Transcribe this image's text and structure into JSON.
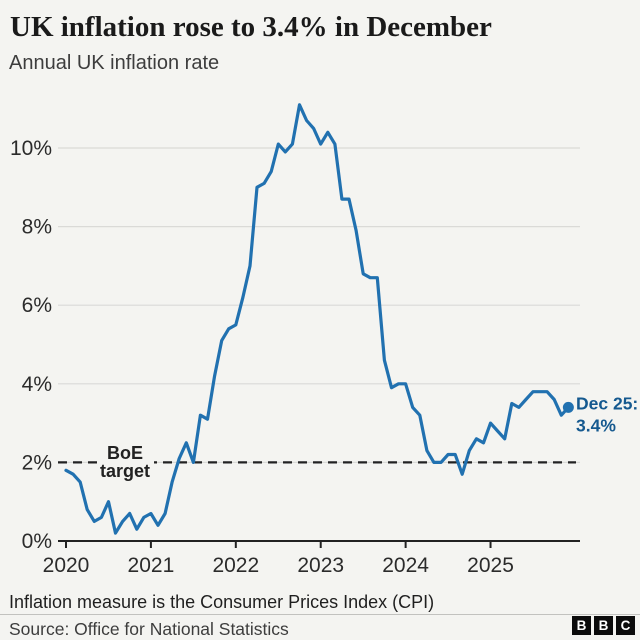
{
  "header": {
    "title": "UK inflation rose to 3.4% in December",
    "subtitle": "Annual UK inflation rate"
  },
  "chart_data": {
    "type": "line",
    "title": "Annual UK inflation rate",
    "x_tick_labels": [
      "2020",
      "2021",
      "2022",
      "2023",
      "2024",
      "2025"
    ],
    "x_range": [
      "Jan 2020",
      "Dec 2025"
    ],
    "y_ticks": [
      0,
      2,
      4,
      6,
      8,
      10
    ],
    "y_tick_labels": [
      "0%",
      "2%",
      "4%",
      "6%",
      "8%",
      "10%"
    ],
    "ylim": [
      0,
      11.6
    ],
    "grid": "horizontal",
    "legend": "none",
    "reference_line": {
      "value": 2,
      "label_lines": [
        "BoE",
        "target"
      ],
      "style": "dashed"
    },
    "series": [
      {
        "name": "Annual UK inflation rate (CPI), monthly Jan 2020 - Dec 2025",
        "color": "#2171b0",
        "values": [
          1.8,
          1.7,
          1.5,
          0.8,
          0.5,
          0.6,
          1.0,
          0.2,
          0.5,
          0.7,
          0.3,
          0.6,
          0.7,
          0.4,
          0.7,
          1.5,
          2.1,
          2.5,
          2.0,
          3.2,
          3.1,
          4.2,
          5.1,
          5.4,
          5.5,
          6.2,
          7.0,
          9.0,
          9.1,
          9.4,
          10.1,
          9.9,
          10.1,
          11.1,
          10.7,
          10.5,
          10.1,
          10.4,
          10.1,
          8.7,
          8.7,
          7.9,
          6.8,
          6.7,
          6.7,
          4.6,
          3.9,
          4.0,
          4.0,
          3.4,
          3.2,
          2.3,
          2.0,
          2.0,
          2.2,
          2.2,
          1.7,
          2.3,
          2.6,
          2.5,
          3.0,
          2.8,
          2.6,
          3.5,
          3.4,
          3.6,
          3.8,
          3.8,
          3.8,
          3.6,
          3.2,
          3.4
        ]
      }
    ],
    "annotation": {
      "text_lines": [
        "Dec 25:",
        "3.4%"
      ],
      "point_index": 71,
      "value": 3.4,
      "color": "#15598f"
    },
    "colors": {
      "line": "#2171b0",
      "grid": "#dadad7",
      "axis": "#222222",
      "tick_labels": "#2b2b2b",
      "reference": "#222222",
      "background": "#f4f4f1"
    }
  },
  "footer": {
    "note": "Inflation measure is the Consumer Prices Index (CPI)",
    "source": "Source: Office for National Statistics",
    "logo_letters": [
      "B",
      "B",
      "C"
    ]
  }
}
